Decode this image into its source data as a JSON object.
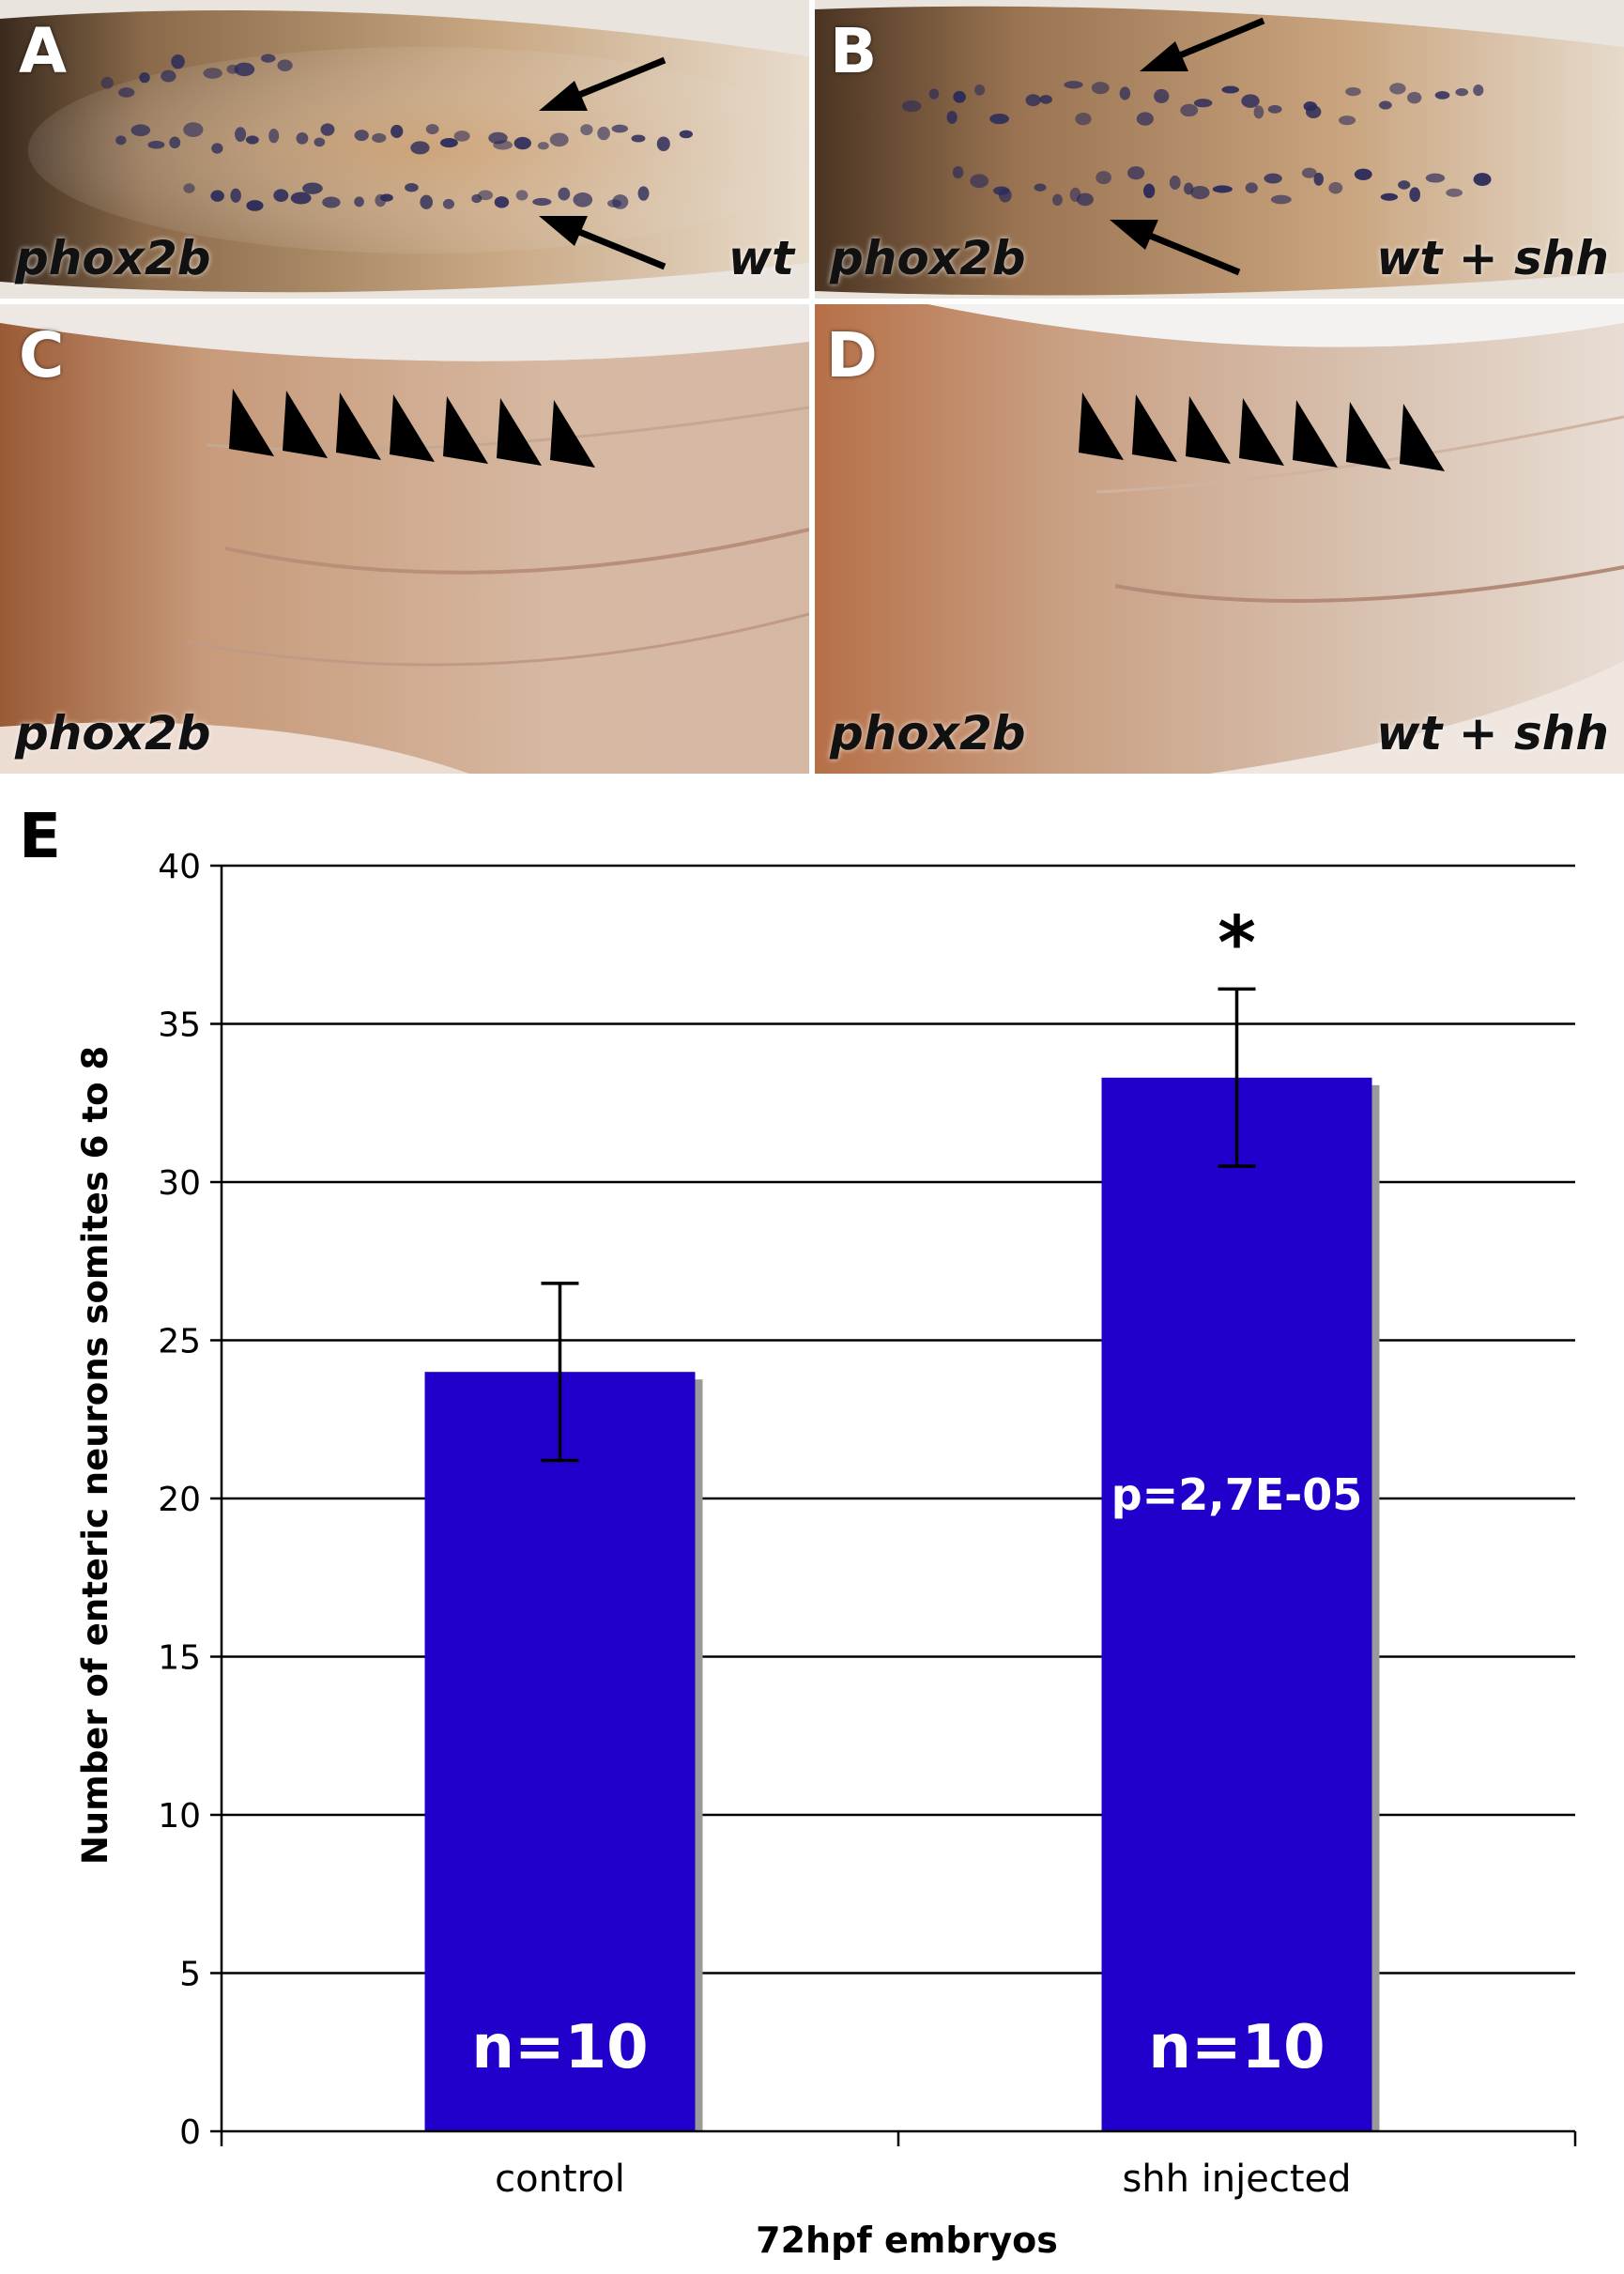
{
  "panels": [
    {
      "id": "A",
      "gene": "phox2b",
      "condition": "wt",
      "markers": "arrows"
    },
    {
      "id": "B",
      "gene": "phox2b",
      "condition": "wt + shh",
      "markers": "arrows"
    },
    {
      "id": "C",
      "gene": "phox2b",
      "condition": "",
      "markers": "arrowheads"
    },
    {
      "id": "D",
      "gene": "phox2b",
      "condition": "wt + shh",
      "markers": "arrowheads"
    }
  ],
  "panel_e_label": "E",
  "chart_data": {
    "type": "bar",
    "categories": [
      "control",
      "shh injected"
    ],
    "values": [
      24.0,
      33.3
    ],
    "errors": [
      2.8,
      2.8
    ],
    "xlabel": "72hpf embryos",
    "ylabel": "Number of enteric neurons somites 6 to 8",
    "ylim": [
      0,
      40
    ],
    "yticks": [
      0,
      5,
      10,
      15,
      20,
      25,
      30,
      35,
      40
    ],
    "grid": true,
    "bar_color": "#2200cc",
    "shadow_color": "#999999",
    "bar_annotations": [
      "n=10",
      "n=10"
    ],
    "p_value_label": "p=2,7E-05",
    "significance_marker": "*"
  }
}
